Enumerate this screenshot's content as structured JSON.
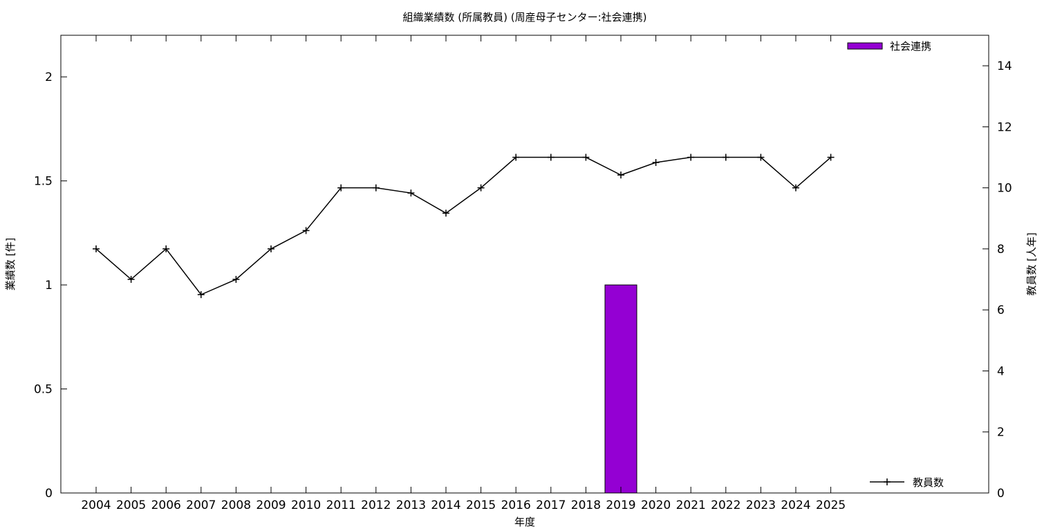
{
  "chart_data": {
    "type": "bar+line",
    "title": "組織業績数 (所属教員) (周産母子センター:社会連携)",
    "xlabel": "年度",
    "ylabel_left": "業績数 [件]",
    "ylabel_right": "教員数 [人年]",
    "categories": [
      "2004",
      "2005",
      "2006",
      "2007",
      "2008",
      "2009",
      "2010",
      "2011",
      "2012",
      "2013",
      "2014",
      "2015",
      "2016",
      "2017",
      "2018",
      "2019",
      "2020",
      "2021",
      "2022",
      "2023",
      "2024",
      "2025"
    ],
    "ylim_left": [
      0,
      2.2
    ],
    "ylim_right": [
      0,
      15
    ],
    "yticks_left": [
      "0",
      "0.5",
      "1",
      "1.5",
      "2"
    ],
    "yticks_right": [
      "0",
      "2",
      "4",
      "6",
      "8",
      "10",
      "12",
      "14"
    ],
    "grid": false,
    "series": [
      {
        "name": "社会連携",
        "type": "bar",
        "axis": "left",
        "color": "#9400d3",
        "values": [
          0,
          0,
          0,
          0,
          0,
          0,
          0,
          0,
          0,
          0,
          0,
          0,
          0,
          0,
          0,
          1,
          0,
          0,
          0,
          0,
          0,
          0
        ]
      },
      {
        "name": "教員数",
        "type": "line",
        "axis": "right",
        "color": "#000000",
        "marker": "plus",
        "values": [
          8,
          7,
          8,
          6.5,
          7,
          8,
          8.6,
          10,
          10,
          9.83,
          9.17,
          10,
          11,
          11,
          11,
          10.42,
          10.83,
          11,
          11,
          11,
          10,
          11
        ]
      }
    ],
    "legend": [
      {
        "label": "社会連携",
        "position": "top-right"
      },
      {
        "label": "教員数",
        "position": "bottom-right"
      }
    ]
  }
}
